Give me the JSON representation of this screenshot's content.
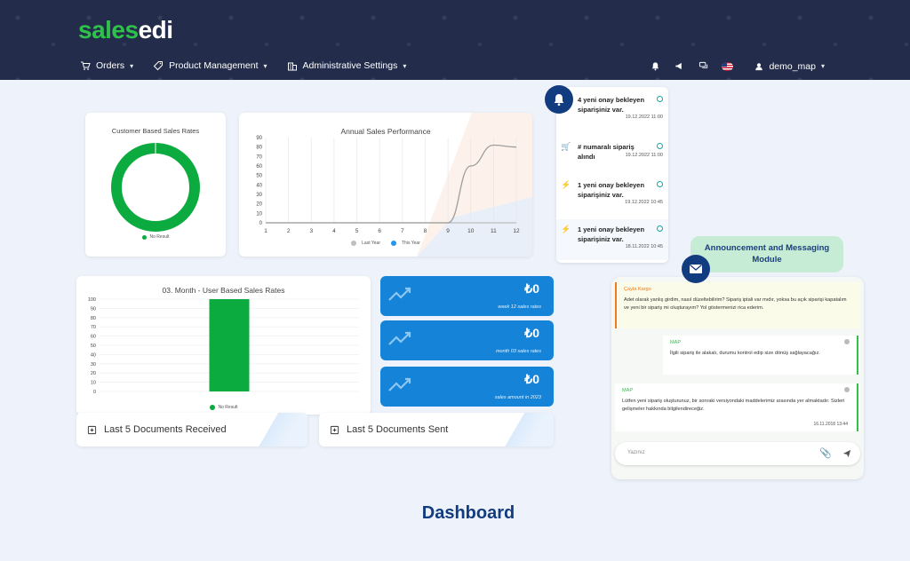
{
  "header": {
    "logo_part1": "sales",
    "logo_part2": "edi",
    "nav": [
      {
        "label": "Orders"
      },
      {
        "label": "Product Management"
      },
      {
        "label": "Administrative Settings"
      }
    ],
    "user": "demo_map"
  },
  "donut": {
    "title": "Customer Based Sales Rates",
    "legend": "No Result",
    "color": "#0cab3f"
  },
  "annual": {
    "title": "Annual Sales Performance",
    "legend": [
      "Last Year",
      "This Year"
    ]
  },
  "userchart": {
    "title": "03. Month - User Based Sales Rates",
    "legend": "No Result"
  },
  "chart_data": [
    {
      "type": "pie",
      "title": "Customer Based Sales Rates",
      "slices": [
        {
          "label": "No Result",
          "value": 100
        }
      ],
      "legend": [
        "No Result"
      ]
    },
    {
      "type": "line",
      "title": "Annual Sales Performance",
      "x": [
        1,
        2,
        3,
        4,
        5,
        6,
        7,
        8,
        9,
        10,
        11,
        12
      ],
      "ylim": [
        0,
        90
      ],
      "yticks": [
        0,
        10,
        20,
        30,
        40,
        50,
        60,
        70,
        80,
        90
      ],
      "series": [
        {
          "name": "Last Year",
          "values": [
            0,
            0,
            0,
            0,
            0,
            0,
            0,
            0,
            0,
            0,
            0,
            0
          ]
        },
        {
          "name": "This Year",
          "values": [
            0,
            0,
            0,
            0,
            0,
            0,
            0,
            0,
            0,
            60,
            82,
            80
          ]
        }
      ],
      "grid": true,
      "legend_position": "bottom"
    },
    {
      "type": "bar",
      "title": "03. Month - User Based Sales Rates",
      "categories": [
        "No Result"
      ],
      "values": [
        100
      ],
      "ylim": [
        0,
        100
      ],
      "yticks": [
        0,
        10,
        20,
        30,
        40,
        50,
        60,
        70,
        80,
        90,
        100
      ],
      "legend": [
        "No Result"
      ]
    }
  ],
  "tiles": [
    {
      "value": "₺0",
      "caption": "week 12 sales rates"
    },
    {
      "value": "₺0",
      "caption": "month 03 sales rates"
    },
    {
      "value": "₺0",
      "caption": "sales amount in 2023"
    }
  ],
  "docs": {
    "received": "Last 5 Documents Received",
    "sent": "Last 5 Documents Sent"
  },
  "notifications": [
    {
      "text": "4 yeni onay bekleyen siparişiniz var.",
      "time": "19.12.2022 11:00",
      "icon": "alert"
    },
    {
      "text": "# numaralı sipariş alındı",
      "time": "19.12.2022 11:00",
      "icon": "cart"
    },
    {
      "text": "1 yeni onay bekleyen siparişiniz var.",
      "time": "19.12.2022 10:45",
      "icon": "bolt"
    },
    {
      "text": "1 yeni onay bekleyen siparişiniz var.",
      "time": "18.11.2022 10:45",
      "icon": "bolt"
    }
  ],
  "announcement": {
    "line1": "Announcement and Messaging",
    "line2": "Module"
  },
  "chat": {
    "messages": [
      {
        "who": "Çayla Kargo",
        "text": "Adet olarak yanlış girdim, nasıl düzeltebilirim? Sipariş iptali var mıdır, yoksa bu açık siparişi kapatalım ve yeni bir sipariş mi oluşturayım? Yol göstermenizi rica ederim.",
        "time": ""
      },
      {
        "who": "MAP",
        "text": "İlgili sipariş ile alakalı, durumu kontrol edip size dönüş sağlayacağız.",
        "time": ""
      },
      {
        "who": "MAP",
        "text": "Lütfen yeni sipariş oluşturunuz, bir sonraki versiyondaki maddelerimiz arasında yer almaktadır. Sizleri gelişmeler hakkında bilgilendireceğiz.",
        "time": "16.11.2018 13:44"
      }
    ],
    "input_placeholder": "Yazınız"
  },
  "page_title": "Dashboard",
  "colors": {
    "navy": "#123c80",
    "green": "#0cab3f",
    "blue": "#1483d8",
    "header": "#232d4b"
  }
}
